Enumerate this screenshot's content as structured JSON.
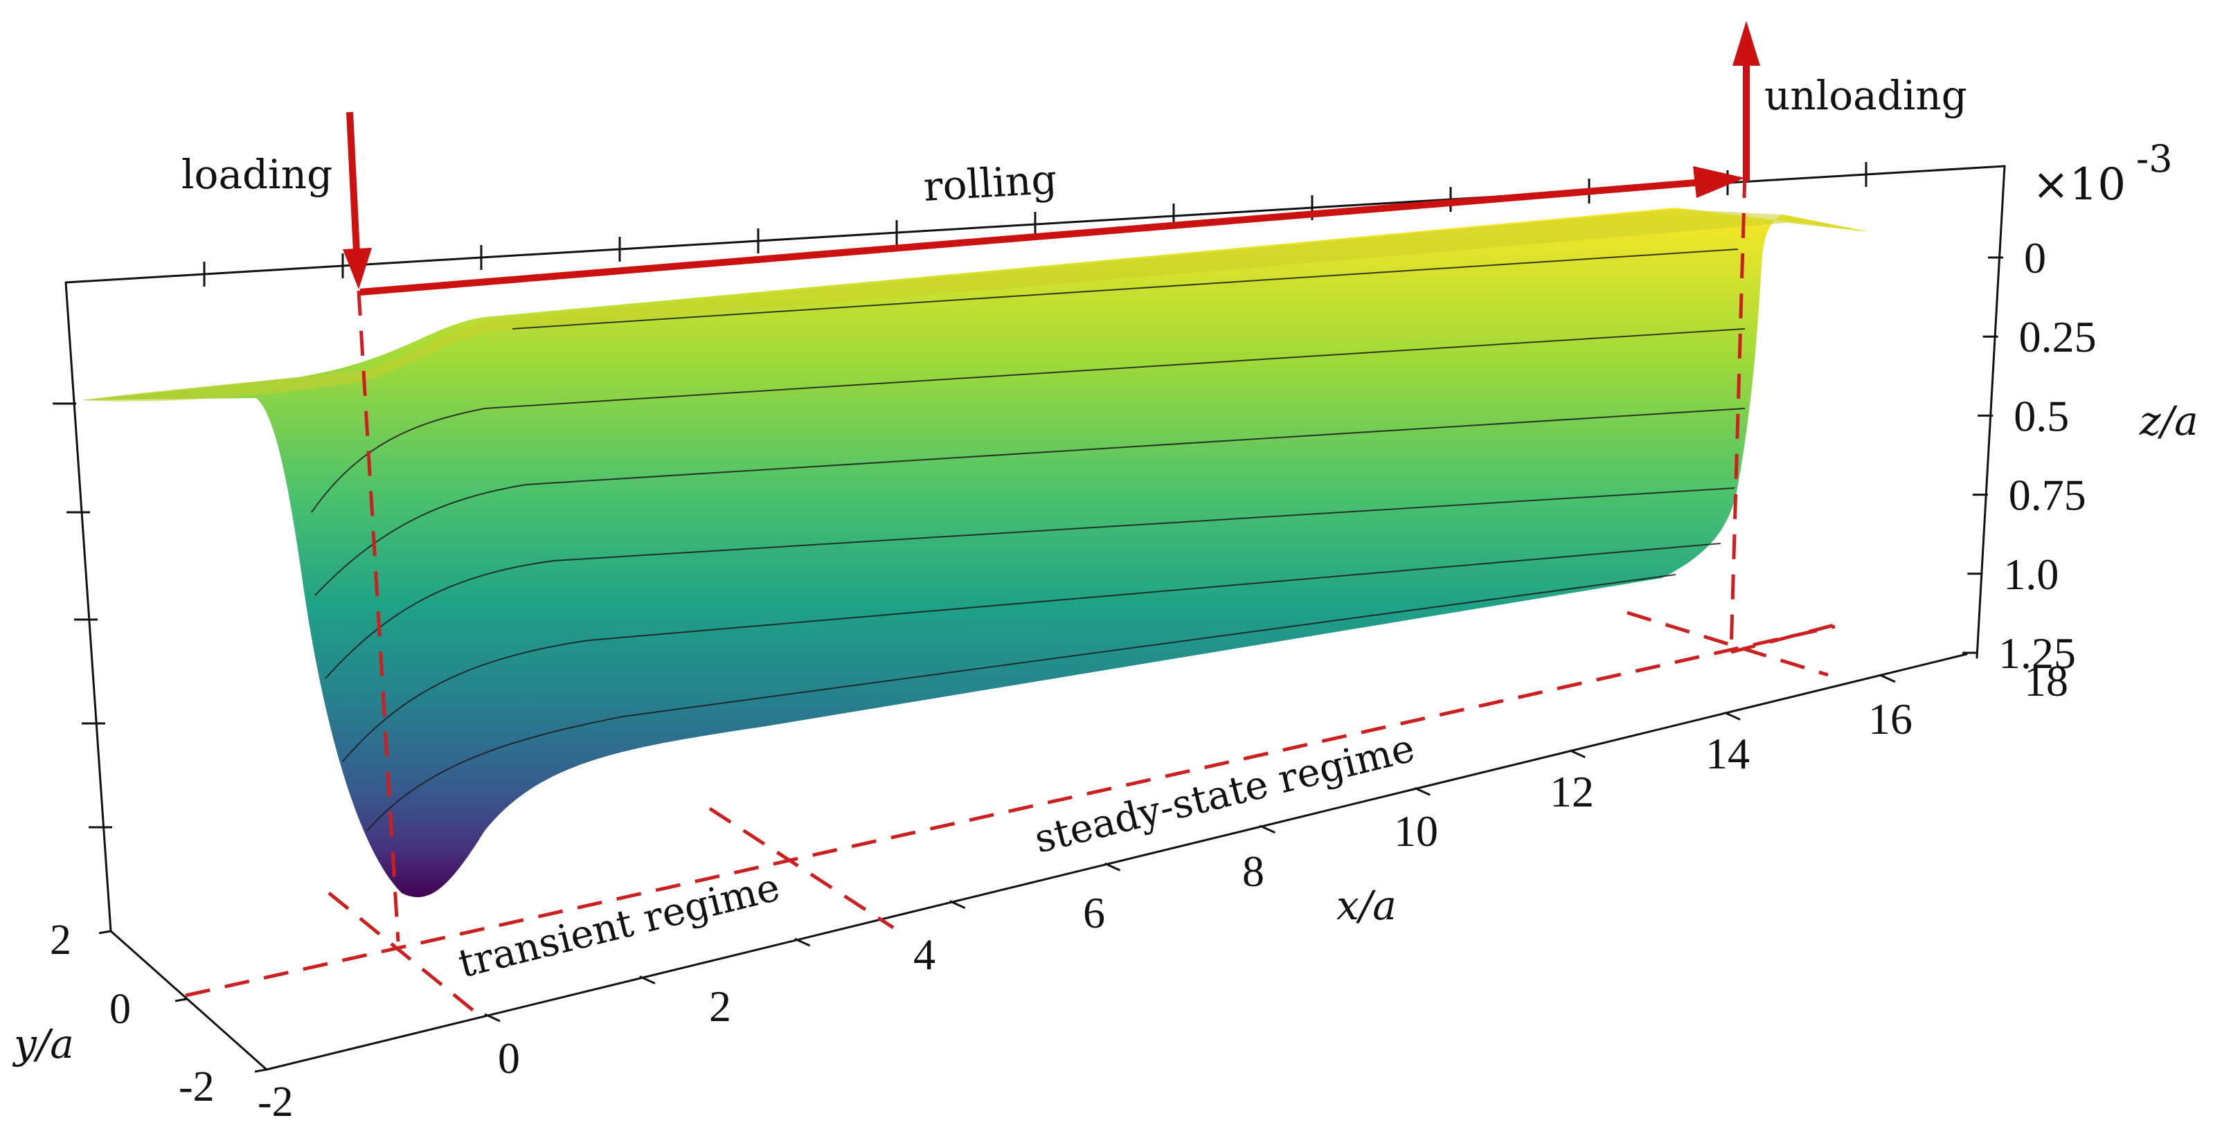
{
  "figure": {
    "labels": {
      "loading": "loading",
      "rolling": "rolling",
      "unloading": "unloading",
      "transient_regime": "transient regime",
      "steady_state_regime": "steady-state regime",
      "x_axis": "x/a",
      "y_axis": "y/a",
      "z_axis": "z/a",
      "z_multiplier": "×10",
      "z_exponent": "-3"
    },
    "x_ticks": [
      "0",
      "2",
      "4",
      "6",
      "8",
      "10",
      "12",
      "14",
      "16",
      "18"
    ],
    "y_ticks": [
      "2",
      "0",
      "-2",
      "-2"
    ],
    "z_ticks": [
      "0",
      "0.25",
      "0.5",
      "0.75",
      "1.0",
      "1.25"
    ],
    "colormap": [
      "#440154",
      "#3b528b",
      "#21918c",
      "#5ec962",
      "#fde725"
    ],
    "accent_color": "#cc1111"
  }
}
